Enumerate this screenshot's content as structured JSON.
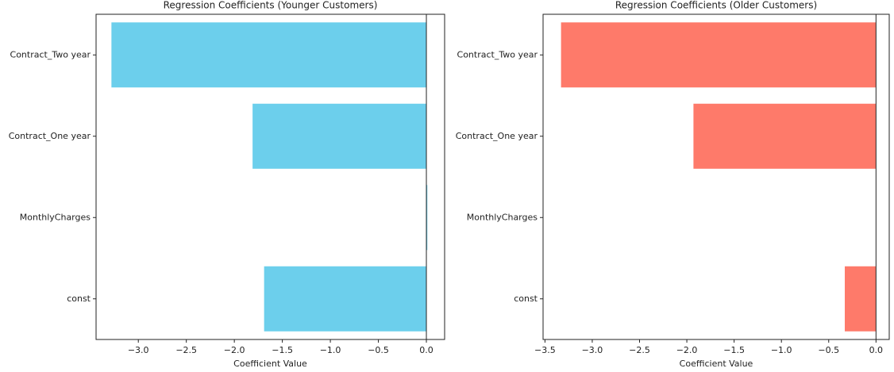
{
  "chart_data": [
    {
      "type": "barh",
      "title": "Regression Coefficients (Younger Customers)",
      "xlabel": "Coefficient Value",
      "categories": [
        "Contract_Two year",
        "Contract_One year",
        "MonthlyCharges",
        "const"
      ],
      "values": [
        -3.28,
        -1.81,
        0.01,
        -1.69
      ],
      "color": "#6ccfec",
      "xlim": [
        -3.44,
        0.19
      ],
      "xticks": [
        {
          "value": -3,
          "label": "−3.0"
        },
        {
          "value": -2.5,
          "label": "−2.5"
        },
        {
          "value": -2,
          "label": "−2.0"
        },
        {
          "value": -1.5,
          "label": "−1.5"
        },
        {
          "value": -1,
          "label": "−1.0"
        },
        {
          "value": -0.5,
          "label": "−0.5"
        },
        {
          "value": 0,
          "label": "0.0"
        }
      ]
    },
    {
      "type": "barh",
      "title": "Regression Coefficients (Older Customers)",
      "xlabel": "Coefficient Value",
      "categories": [
        "Contract_Two year",
        "Contract_One year",
        "MonthlyCharges",
        "const"
      ],
      "values": [
        -3.33,
        -1.93,
        0.0,
        -0.33
      ],
      "color": "#fe7a6a",
      "xlim": [
        -3.52,
        0.14
      ],
      "xticks": [
        {
          "value": -3.5,
          "label": "−3.5"
        },
        {
          "value": -3,
          "label": "−3.0"
        },
        {
          "value": -2.5,
          "label": "−2.5"
        },
        {
          "value": -2,
          "label": "−2.0"
        },
        {
          "value": -1.5,
          "label": "−1.5"
        },
        {
          "value": -1,
          "label": "−1.0"
        },
        {
          "value": -0.5,
          "label": "−0.5"
        },
        {
          "value": 0,
          "label": "0.0"
        }
      ]
    }
  ]
}
